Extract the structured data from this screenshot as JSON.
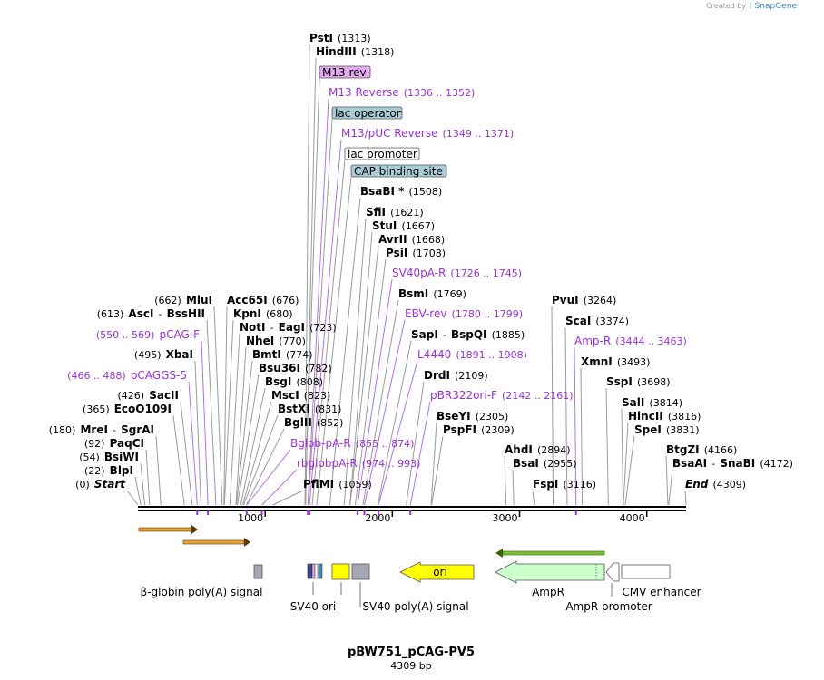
{
  "credit": {
    "prefix": "Created by",
    "brand": "SnapGene"
  },
  "map": {
    "length": 4309,
    "title": "pBW751_pCAG-PV5",
    "subtitle": "4309 bp",
    "axis_ticks": [
      "1000",
      "2000",
      "3000",
      "4000"
    ]
  },
  "sites": [
    {
      "name": "PstI",
      "pos": "(1313)"
    },
    {
      "name": "HindIII",
      "pos": "(1318)"
    },
    {
      "name": "BsaBI *",
      "pos": "(1508)"
    },
    {
      "name": "SfiI",
      "pos": "(1621)"
    },
    {
      "name": "StuI",
      "pos": "(1667)"
    },
    {
      "name": "AvrII",
      "pos": "(1668)"
    },
    {
      "name": "PsiI",
      "pos": "(1708)"
    },
    {
      "name": "BsmI",
      "pos": "(1769)"
    },
    {
      "name": "SapI",
      "sep": "-",
      "name2": "BspQI",
      "pos": "(1885)"
    },
    {
      "name": "DrdI",
      "pos": "(2109)"
    },
    {
      "name": "BseYI",
      "pos": "(2305)"
    },
    {
      "name": "PspFI",
      "pos": "(2309)"
    },
    {
      "name": "MluI",
      "pos": "(662)"
    },
    {
      "name": "AscI",
      "sep": "-",
      "name2": "BssHII",
      "pos": "(613)"
    },
    {
      "name": "XbaI",
      "pos": "(495)"
    },
    {
      "name": "SacII",
      "pos": "(426)"
    },
    {
      "name": "EcoO109I",
      "pos": "(365)"
    },
    {
      "name": "MreI",
      "sep": "-",
      "name2": "SgrAI",
      "pos": "(180)"
    },
    {
      "name": "PaqCI",
      "pos": "(92)"
    },
    {
      "name": "BsiWI",
      "pos": "(54)"
    },
    {
      "name": "BlpI",
      "pos": "(22)"
    },
    {
      "name": "Start",
      "pos": "(0)"
    },
    {
      "name": "Acc65I",
      "pos": "(676)"
    },
    {
      "name": "KpnI",
      "pos": "(680)"
    },
    {
      "name": "NotI",
      "sep": "-",
      "name2": "EagI",
      "pos": "(723)"
    },
    {
      "name": "NheI",
      "pos": "(770)"
    },
    {
      "name": "BmtI",
      "pos": "(774)"
    },
    {
      "name": "Bsu36I",
      "pos": "(782)"
    },
    {
      "name": "BsgI",
      "pos": "(808)"
    },
    {
      "name": "MscI",
      "pos": "(823)"
    },
    {
      "name": "BstXI",
      "pos": "(831)"
    },
    {
      "name": "BglII",
      "pos": "(852)"
    },
    {
      "name": "PflMI",
      "pos": "(1059)"
    },
    {
      "name": "PvuI",
      "pos": "(3264)"
    },
    {
      "name": "ScaI",
      "pos": "(3374)"
    },
    {
      "name": "XmnI",
      "pos": "(3493)"
    },
    {
      "name": "SspI",
      "pos": "(3698)"
    },
    {
      "name": "SalI",
      "pos": "(3814)"
    },
    {
      "name": "HincII",
      "pos": "(3816)"
    },
    {
      "name": "SpeI",
      "pos": "(3831)"
    },
    {
      "name": "BtgZI",
      "pos": "(4166)"
    },
    {
      "name": "BsaAI",
      "sep": "-",
      "name2": "SnaBI",
      "pos": "(4172)"
    },
    {
      "name": "End",
      "pos": "(4309)"
    },
    {
      "name": "AhdI",
      "pos": "(2894)"
    },
    {
      "name": "BsaI",
      "pos": "(2955)"
    },
    {
      "name": "FspI",
      "pos": "(3116)"
    }
  ],
  "primers": [
    {
      "name": "M13 Reverse",
      "range": "(1336 .. 1352)"
    },
    {
      "name": "M13/pUC Reverse",
      "range": "(1349 .. 1371)"
    },
    {
      "name": "SV40pA-R",
      "range": "(1726 .. 1745)"
    },
    {
      "name": "EBV-rev",
      "range": "(1780 .. 1799)"
    },
    {
      "name": "L4440",
      "range": "(1891 .. 1908)"
    },
    {
      "name": "pBR322ori-F",
      "range": "(2142 .. 2161)"
    },
    {
      "name": "pCAG-F",
      "range": "(550 .. 569)"
    },
    {
      "name": "pCAGGS-5",
      "range": "(466 .. 488)"
    },
    {
      "name": "Bglob-pA-R",
      "range": "(855 .. 874)"
    },
    {
      "name": "rbglobpA-R",
      "range": "(974 .. 993)"
    },
    {
      "name": "Amp-R",
      "range": "(3444 .. 3463)"
    }
  ],
  "feature_labels": [
    {
      "text": "M13 rev",
      "color": "#e4aaf0"
    },
    {
      "text": "lac operator",
      "color": "#a9cdd6"
    },
    {
      "text": "lac promoter",
      "color": "#ffffff"
    },
    {
      "text": "CAP binding site",
      "color": "#a9cdd6"
    }
  ],
  "features": [
    {
      "text": "β-globin poly(A) signal"
    },
    {
      "text": "SV40 ori"
    },
    {
      "text": "SV40 poly(A) signal"
    },
    {
      "text": "ori"
    },
    {
      "text": "AmpR"
    },
    {
      "text": "AmpR promoter"
    },
    {
      "text": "CMV enhancer"
    }
  ],
  "colors": {
    "enzyme": "#000000",
    "primer": "#9b30d9",
    "ori": "#ffff00",
    "ampr": "#ccffcc",
    "grey_feature": "#a5a8b3",
    "orf_arrow": "#e8a33a",
    "orf_arrow_green": "#336600"
  }
}
